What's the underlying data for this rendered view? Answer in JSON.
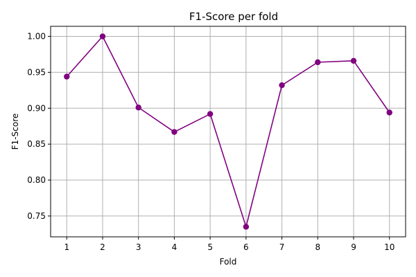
{
  "chart_data": {
    "type": "line",
    "title": "F1-Score per fold",
    "xlabel": "Fold",
    "ylabel": "F1-Score",
    "x": [
      1,
      2,
      3,
      4,
      5,
      6,
      7,
      8,
      9,
      10
    ],
    "series": [
      {
        "values": [
          0.944,
          1.0,
          0.901,
          0.867,
          0.892,
          0.735,
          0.932,
          0.964,
          0.966,
          0.894
        ],
        "color": "#800080",
        "marker": "circle"
      }
    ],
    "xlim": [
      0.55,
      10.45
    ],
    "ylim": [
      0.721,
      1.014
    ],
    "xticks": [
      1,
      2,
      3,
      4,
      5,
      6,
      7,
      8,
      9,
      10
    ],
    "yticks": [
      0.75,
      0.8,
      0.85,
      0.9,
      0.95,
      1.0
    ],
    "ytick_labels": [
      "0.75",
      "0.80",
      "0.85",
      "0.90",
      "0.95",
      "1.00"
    ],
    "grid": true,
    "legend": "none"
  }
}
